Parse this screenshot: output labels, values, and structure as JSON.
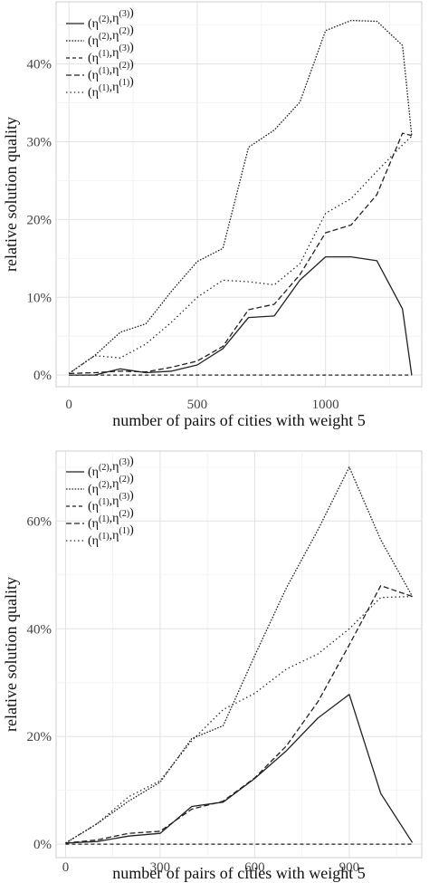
{
  "chart_data": [
    {
      "type": "line",
      "xlabel": "number of pairs of cities with weight 5",
      "ylabel": "relative solution quality",
      "x_ticks": [
        0,
        500,
        1000
      ],
      "y_ticks": [
        "0%",
        "10%",
        "20%",
        "30%",
        "40%"
      ],
      "xlim": [
        -50,
        1375
      ],
      "ylim": [
        -1.5,
        48
      ],
      "grid": true,
      "legend_position": "top-left",
      "series": [
        {
          "name": "(η(2),η(3))",
          "style": "solid",
          "x": [
            0,
            100,
            200,
            300,
            400,
            500,
            600,
            700,
            800,
            900,
            1000,
            1100,
            1200,
            1300,
            1336
          ],
          "y": [
            0,
            0,
            0.8,
            0.3,
            0.5,
            1.3,
            3.4,
            7.4,
            7.6,
            12.2,
            15.2,
            15.2,
            14.7,
            8.5,
            0
          ]
        },
        {
          "name": "(η(2),η(2))",
          "style": "dotted-dense",
          "x": [
            0,
            100,
            200,
            300,
            400,
            500,
            600,
            700,
            800,
            900,
            1000,
            1100,
            1200,
            1300,
            1336
          ],
          "y": [
            0.2,
            2.5,
            5.5,
            6.6,
            10.8,
            14.6,
            16.3,
            29.3,
            31.5,
            35.1,
            44.3,
            45.6,
            45.5,
            42.4,
            30.8
          ]
        },
        {
          "name": "(η(1),η(3))",
          "style": "dashed-fine",
          "x": [
            0,
            1336
          ],
          "y": [
            0,
            0
          ]
        },
        {
          "name": "(η(1),η(2))",
          "style": "dashed",
          "x": [
            0,
            100,
            200,
            300,
            400,
            500,
            600,
            700,
            800,
            900,
            1000,
            1100,
            1200,
            1300,
            1336
          ],
          "y": [
            0.2,
            0.3,
            0.5,
            0.4,
            1.0,
            1.8,
            3.7,
            8.4,
            9.1,
            12.9,
            18.3,
            19.3,
            23.2,
            31.1,
            30.8
          ]
        },
        {
          "name": "(η(1),η(1))",
          "style": "dotted",
          "x": [
            0,
            100,
            200,
            300,
            400,
            500,
            600,
            700,
            800,
            900,
            1000,
            1100,
            1200,
            1300,
            1336
          ],
          "y": [
            0.2,
            2.5,
            2.2,
            4.0,
            6.8,
            10.0,
            12.2,
            12.0,
            11.6,
            14.3,
            20.8,
            22.7,
            26.2,
            29.6,
            30.7
          ]
        }
      ]
    },
    {
      "type": "line",
      "xlabel": "number of pairs of cities with weight 5",
      "ylabel": "relative solution quality",
      "x_ticks": [
        0,
        300,
        600,
        900
      ],
      "y_ticks": [
        "0%",
        "20%",
        "40%",
        "60%"
      ],
      "xlim": [
        -30,
        1130
      ],
      "ylim": [
        -2.5,
        73
      ],
      "grid": true,
      "legend_position": "top-left",
      "series": [
        {
          "name": "(η(2),η(3))",
          "style": "solid",
          "x": [
            0,
            100,
            200,
            300,
            400,
            500,
            600,
            700,
            800,
            900,
            1000,
            1100
          ],
          "y": [
            0.2,
            0.5,
            1.5,
            2.0,
            7.0,
            7.8,
            12.2,
            17.3,
            23.4,
            27.8,
            9.4,
            0.3
          ]
        },
        {
          "name": "(η(2),η(2))",
          "style": "dotted-dense",
          "x": [
            0,
            100,
            200,
            300,
            400,
            500,
            600,
            700,
            800,
            900,
            1000,
            1100
          ],
          "y": [
            0.2,
            3.8,
            8.0,
            11.5,
            19.6,
            22.0,
            35.0,
            47.5,
            58.3,
            70.0,
            56.5,
            46.0
          ]
        },
        {
          "name": "(η(1),η(3))",
          "style": "dashed-fine",
          "x": [
            0,
            1100
          ],
          "y": [
            0,
            0
          ]
        },
        {
          "name": "(η(1),η(2))",
          "style": "dashed",
          "x": [
            0,
            100,
            200,
            300,
            400,
            500,
            600,
            700,
            800,
            900,
            1000,
            1100
          ],
          "y": [
            0.2,
            0.8,
            2.0,
            2.4,
            6.5,
            8.0,
            12.3,
            18.2,
            26.4,
            37.0,
            48.0,
            46.0
          ]
        },
        {
          "name": "(η(1),η(1))",
          "style": "dotted",
          "x": [
            0,
            100,
            200,
            300,
            400,
            500,
            600,
            700,
            800,
            900,
            1000,
            1100
          ],
          "y": [
            0.2,
            3.8,
            8.8,
            11.8,
            19.2,
            25.0,
            28.0,
            32.5,
            35.3,
            40.0,
            45.8,
            46.0
          ]
        }
      ]
    }
  ]
}
